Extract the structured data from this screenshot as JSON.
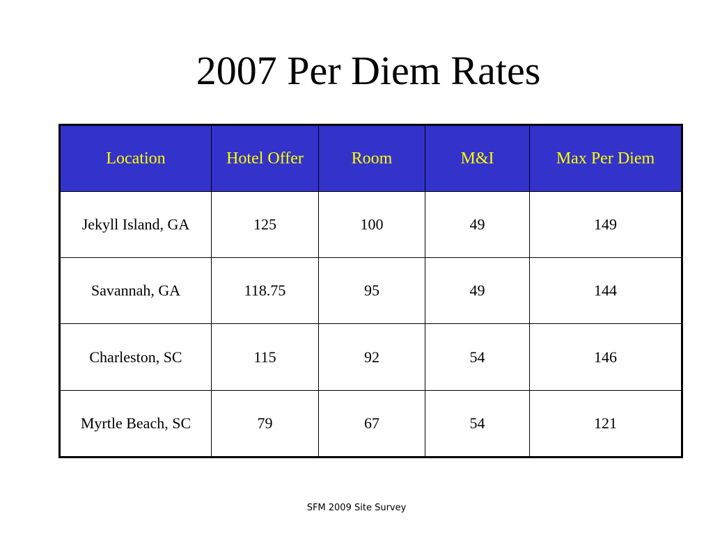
{
  "slide": {
    "title": "2007 Per Diem Rates",
    "footer": "SFM 2009 Site Survey"
  },
  "table": {
    "header_bg_color": "#3333cc",
    "header_text_color": "#ffff00",
    "headers": [
      "Location",
      "Hotel Offer",
      "Room",
      "M&I",
      "Max Per Diem"
    ],
    "rows": [
      [
        "Jekyll Island, GA",
        "125",
        "100",
        "49",
        "149"
      ],
      [
        "Savannah, GA",
        "118.75",
        "95",
        "49",
        "144"
      ],
      [
        "Charleston, SC",
        "115",
        "92",
        "54",
        "146"
      ],
      [
        "Myrtle Beach, SC",
        "79",
        "67",
        "54",
        "121"
      ]
    ]
  }
}
